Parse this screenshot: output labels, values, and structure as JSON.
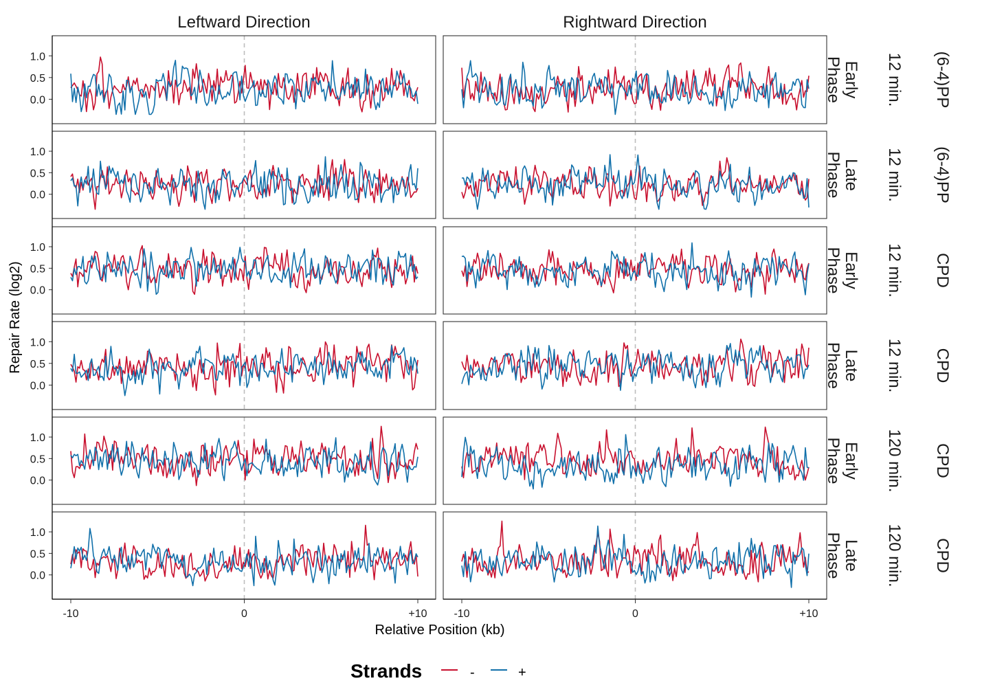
{
  "chart_data": {
    "type": "line",
    "columns": [
      "Leftward Direction",
      "Rightward Direction"
    ],
    "rows": [
      {
        "time": "12 min.",
        "phase": [
          "Early",
          "Phase"
        ],
        "damage": "(6-4)PP",
        "base": 0.2
      },
      {
        "time": "12 min.",
        "phase": [
          "Late",
          "Phase"
        ],
        "damage": "(6-4)PP",
        "base": 0.2
      },
      {
        "time": "12 min.",
        "phase": [
          "Early",
          "Phase"
        ],
        "damage": "CPD",
        "base": 0.45
      },
      {
        "time": "12 min.",
        "phase": [
          "Late",
          "Phase"
        ],
        "damage": "CPD",
        "base": 0.4
      },
      {
        "time": "120 min.",
        "phase": [
          "Early",
          "Phase"
        ],
        "damage": "CPD",
        "base": 0.45
      },
      {
        "time": "120 min.",
        "phase": [
          "Late",
          "Phase"
        ],
        "damage": "CPD",
        "base": 0.3
      }
    ],
    "xlabel": "Relative Position (kb)",
    "ylabel": "Repair Rate (log2)",
    "xticks": [
      "-10",
      "0",
      "+10"
    ],
    "xlim": [
      -10,
      10
    ],
    "yticks": [
      "0.0",
      "0.5",
      "1.0"
    ],
    "ylim": [
      -0.5,
      1.4
    ],
    "legend": {
      "title": "Strands",
      "position": "bottom",
      "items": [
        {
          "label": "-",
          "color": "#C8102E"
        },
        {
          "label": "+",
          "color": "#1170AA"
        }
      ]
    },
    "series_colors": {
      "minus": "#C8102E",
      "plus": "#1170AA"
    },
    "points_per_series": 200,
    "reference_line_x": 0
  }
}
